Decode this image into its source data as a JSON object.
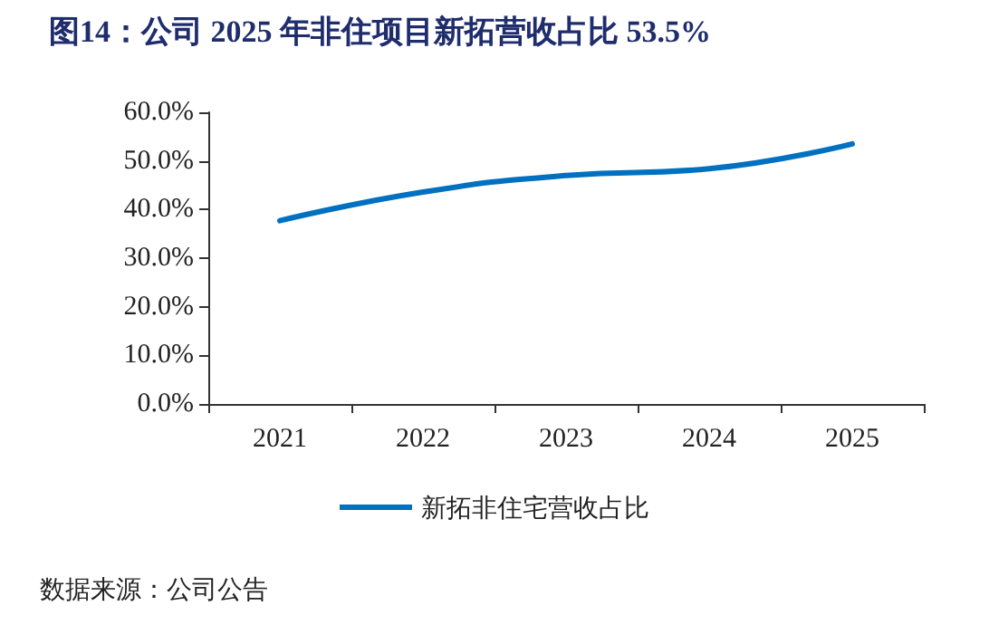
{
  "chart_data": {
    "type": "line",
    "title": "图14：公司 2025 年非住项目新拓营收占比 53.5%",
    "categories": [
      "2021",
      "2022",
      "2023",
      "2024",
      "2025"
    ],
    "series": [
      {
        "name": "新拓非住宅营收占比",
        "color": "#0070c0",
        "values": [
          37.7,
          43.6,
          47.0,
          48.4,
          53.5
        ]
      }
    ],
    "ylim": [
      0,
      60
    ],
    "yticks": [
      {
        "value": 0,
        "label": "0.0%"
      },
      {
        "value": 10,
        "label": "10.0%"
      },
      {
        "value": 20,
        "label": "20.0%"
      },
      {
        "value": 30,
        "label": "30.0%"
      },
      {
        "value": 40,
        "label": "40.0%"
      },
      {
        "value": 50,
        "label": "50.0%"
      },
      {
        "value": 60,
        "label": "60.0%"
      }
    ],
    "grid": false,
    "legend": "bottom",
    "marker": "none",
    "line_style": "solid",
    "annotations": [
      "数据来源：公司公告"
    ]
  }
}
